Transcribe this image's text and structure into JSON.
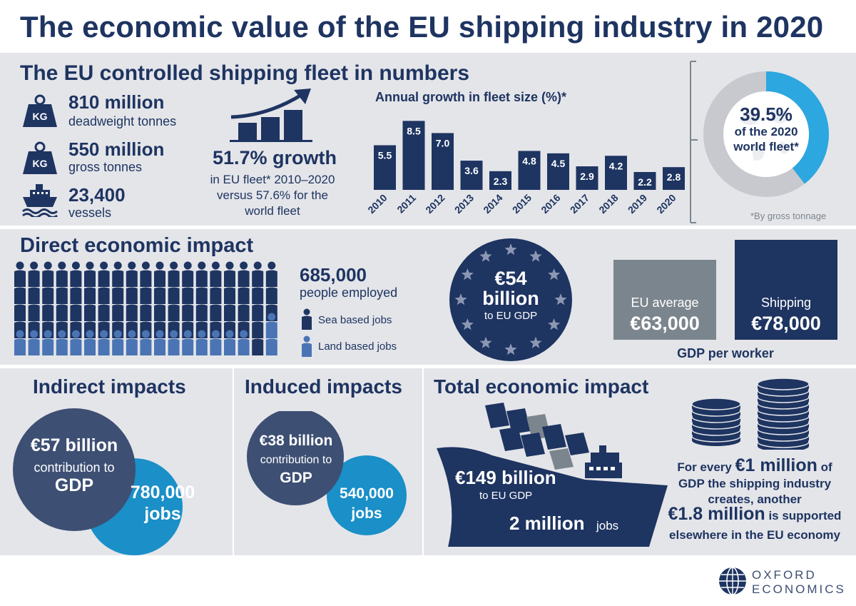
{
  "title": "The economic value of the EU shipping industry in 2020",
  "fleet": {
    "heading": "The EU controlled shipping fleet in numbers",
    "stats": [
      {
        "value": "810 million",
        "label": "deadweight tonnes",
        "icon": "kg-weight-icon"
      },
      {
        "value": "550 million",
        "label": "gross tonnes",
        "icon": "kg-weight-icon"
      },
      {
        "value": "23,400",
        "label": "vessels",
        "icon": "ship-icon"
      }
    ],
    "growth_headline": "51.7% growth",
    "growth_line1": "in EU fleet* 2010–2020",
    "growth_line2": "versus 57.6% for the",
    "growth_line3": "world fleet",
    "world_share_value": "39.5%",
    "world_share_line1": "of the 2020",
    "world_share_line2": "world fleet*",
    "world_share_fraction": 0.395,
    "footnote": "*By gross tonnage"
  },
  "chart_data": {
    "type": "bar",
    "title": "Annual growth in fleet size (%)*",
    "categories": [
      "2010",
      "2011",
      "2012",
      "2013",
      "2014",
      "2015",
      "2016",
      "2017",
      "2018",
      "2019",
      "2020"
    ],
    "values": [
      5.5,
      8.5,
      7.0,
      3.6,
      2.3,
      4.8,
      4.5,
      2.9,
      4.2,
      2.2,
      2.8
    ],
    "labels": [
      "5.5",
      "8.5",
      "7.0",
      "3.6",
      "2.3",
      "4.8",
      "4.5",
      "2.9",
      "4.2",
      "2.2",
      "2.8"
    ],
    "ylim": [
      0,
      9.5
    ],
    "bar_color": "#1e3461"
  },
  "direct": {
    "heading": "Direct economic impact",
    "employed_value": "685,000",
    "employed_label": "people employed",
    "legend_sea": "Sea based jobs",
    "legend_land": "Land based jobs",
    "gdp_value_line1": "€54",
    "gdp_value_line2": "billion",
    "gdp_label": "to EU GDP",
    "gdp_per_worker_label": "GDP per worker",
    "eu_avg_label": "EU average",
    "eu_avg_value": "€63,000",
    "shipping_label": "Shipping",
    "shipping_value": "€78,000"
  },
  "indirect": {
    "heading": "Indirect impacts",
    "gdp_value": "€57 billion",
    "gdp_line1": "contribution to",
    "gdp_line2": "GDP",
    "jobs_value": "780,000",
    "jobs_label": "jobs"
  },
  "induced": {
    "heading": "Induced impacts",
    "gdp_value": "€38 billion",
    "gdp_line1": "contribution to",
    "gdp_line2": "GDP",
    "jobs_value": "540,000",
    "jobs_label": "jobs"
  },
  "total": {
    "heading": "Total economic impact",
    "gdp_value": "€149 billion",
    "gdp_label": "to EU GDP",
    "jobs_value": "2 million",
    "jobs_label": "jobs",
    "multiplier_pre": "For every",
    "multiplier_value1": "€1 million",
    "multiplier_mid": "of",
    "multiplier_line2": "GDP the shipping industry",
    "multiplier_line3": "creates, another",
    "multiplier_value2": "€1.8 million",
    "multiplier_post": "is supported",
    "multiplier_line5": "elsewhere in the EU economy"
  },
  "brand": {
    "line1": "OXFORD",
    "line2": "ECONOMICS"
  },
  "colors": {
    "navy": "#1e3461",
    "slate": "#3d4f73",
    "cyan": "#1a8fc8",
    "light_blue": "#2ca7e0",
    "grey": "#7b858d",
    "band": "#e4e5e9",
    "land_person": "#4a74b4"
  }
}
